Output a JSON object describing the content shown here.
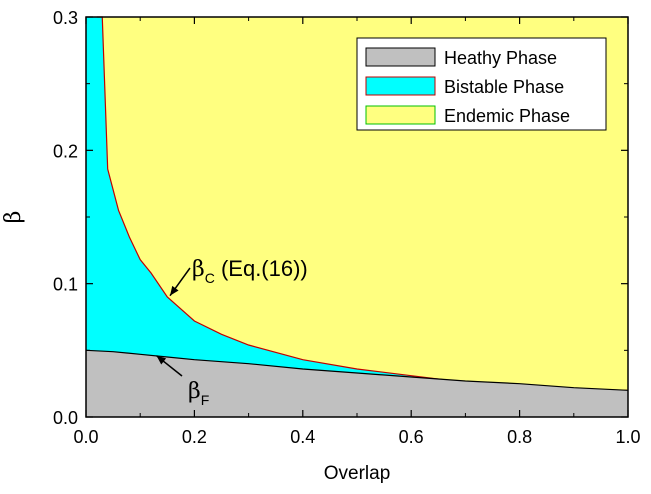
{
  "chart_data": {
    "type": "area",
    "xlabel": "Overlap",
    "ylabel": "β",
    "xlim": [
      0.0,
      1.0
    ],
    "ylim": [
      0.0,
      0.3
    ],
    "x_ticks": [
      "0.0",
      "0.2",
      "0.4",
      "0.6",
      "0.8",
      "1.0"
    ],
    "y_ticks": [
      "0.0",
      "0.1",
      "0.2",
      "0.3"
    ],
    "legend_position": "top-right",
    "series": [
      {
        "name": "Heathy Phase",
        "color": "#c0c0c0",
        "edge_color": "#000000",
        "x": [
          0.0,
          0.05,
          0.1,
          0.15,
          0.2,
          0.3,
          0.4,
          0.5,
          0.6,
          0.7,
          0.8,
          0.9,
          1.0
        ],
        "y": [
          0.05,
          0.049,
          0.047,
          0.045,
          0.043,
          0.04,
          0.036,
          0.033,
          0.03,
          0.027,
          0.025,
          0.022,
          0.02
        ]
      },
      {
        "name": "Bistable Phase",
        "color": "#00ffff",
        "edge_color": "#c00000",
        "x": [
          0.02,
          0.03,
          0.04,
          0.06,
          0.08,
          0.1,
          0.12,
          0.15,
          0.2,
          0.25,
          0.3,
          0.4,
          0.5,
          0.6,
          0.7,
          0.8,
          0.9,
          1.0
        ],
        "y": [
          0.3,
          0.3,
          0.186,
          0.155,
          0.135,
          0.118,
          0.108,
          0.09,
          0.072,
          0.062,
          0.054,
          0.043,
          0.036,
          0.031,
          0.026,
          0.023,
          0.021,
          0.02
        ]
      },
      {
        "name": "Endemic Phase",
        "color": "#ffff80",
        "edge_color": "#00c000"
      }
    ],
    "annotations": [
      {
        "label": "β",
        "subscript": "C",
        "suffix": " (Eq.(16))",
        "arrow_to": [
          0.155,
          0.091
        ]
      },
      {
        "label": "β",
        "subscript": "F",
        "suffix": "",
        "arrow_to": [
          0.13,
          0.046
        ]
      }
    ]
  }
}
